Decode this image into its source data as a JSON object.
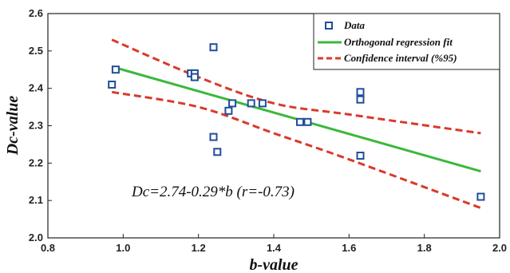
{
  "chart_data": {
    "type": "scatter",
    "xlabel": "b-value",
    "ylabel": "Dc-value",
    "xlim": [
      0.8,
      2.0
    ],
    "ylim": [
      2.0,
      2.6
    ],
    "x_ticks": [
      "0.8",
      "1.0",
      "1.2",
      "1.4",
      "1.6",
      "1.8",
      "2.0"
    ],
    "y_ticks": [
      "2.0",
      "2.1",
      "2.2",
      "2.3",
      "2.4",
      "2.5",
      "2.6"
    ],
    "grid": false,
    "legend_position": "top-right",
    "annotation": "Dc=2.74-0.29*b   (r=-0.73)",
    "series": [
      {
        "name": "Data",
        "kind": "points",
        "color": "#1f4e9c",
        "x": [
          0.97,
          0.98,
          1.18,
          1.19,
          1.19,
          1.24,
          1.24,
          1.25,
          1.28,
          1.29,
          1.34,
          1.37,
          1.47,
          1.49,
          1.63,
          1.63,
          1.63,
          1.95
        ],
        "y": [
          2.41,
          2.45,
          2.44,
          2.44,
          2.43,
          2.51,
          2.27,
          2.23,
          2.34,
          2.36,
          2.36,
          2.36,
          2.31,
          2.31,
          2.39,
          2.37,
          2.22,
          2.11
        ]
      },
      {
        "name": "Orthogonal regression fit",
        "kind": "line",
        "color": "#3cb83c",
        "x": [
          0.97,
          1.95
        ],
        "y": [
          2.458,
          2.178
        ]
      },
      {
        "name": "Confidence interval (%95)",
        "kind": "dashed",
        "color": "#d93a2b",
        "bands": [
          {
            "x": [
              0.97,
              1.2,
              1.4,
              1.6,
              1.95
            ],
            "y": [
              2.53,
              2.43,
              2.36,
              2.33,
              2.28
            ]
          },
          {
            "x": [
              0.97,
              1.2,
              1.4,
              1.6,
              1.95
            ],
            "y": [
              2.39,
              2.35,
              2.28,
              2.21,
              2.08
            ]
          }
        ]
      }
    ]
  }
}
